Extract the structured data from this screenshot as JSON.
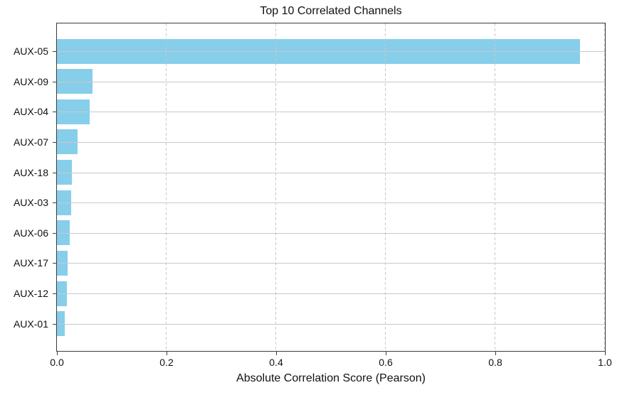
{
  "chart_data": {
    "type": "bar",
    "orientation": "horizontal",
    "title": "Top 10 Correlated Channels",
    "xlabel": "Absolute Correlation Score (Pearson)",
    "ylabel": "",
    "categories": [
      "AUX-05",
      "AUX-09",
      "AUX-04",
      "AUX-07",
      "AUX-18",
      "AUX-03",
      "AUX-06",
      "AUX-17",
      "AUX-12",
      "AUX-01"
    ],
    "values": [
      0.955,
      0.065,
      0.06,
      0.038,
      0.027,
      0.026,
      0.024,
      0.019,
      0.018,
      0.014
    ],
    "xlim": [
      0.0,
      1.0
    ],
    "x_tick_labels": [
      "0.0",
      "0.2",
      "0.4",
      "0.6",
      "0.8",
      "1.0"
    ],
    "x_tick_values": [
      0.0,
      0.2,
      0.4,
      0.6,
      0.8,
      1.0
    ],
    "bar_color": "#87CEEB",
    "grid": true,
    "grid_h_style": "solid",
    "grid_v_style": "dashed",
    "grid_color": "#c9c9c9",
    "spine_color": "#3c3c3c",
    "background_color": "#ffffff",
    "legend": null
  }
}
